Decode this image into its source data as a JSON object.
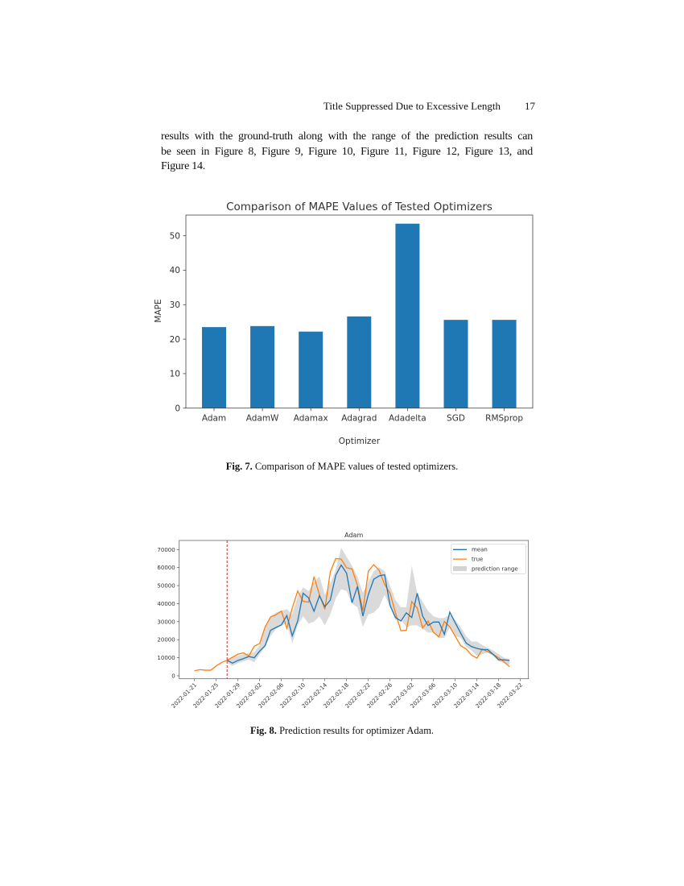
{
  "header": {
    "running_title": "Title Suppressed Due to Excessive Length",
    "page_number": "17"
  },
  "body": {
    "lines": [
      "results with the ground-truth along with the range of the prediction results can",
      "be seen in Figure 8, Figure 9, Figure 10, Figure 11, Figure 12, Figure 13, and",
      "Figure 14."
    ]
  },
  "figures": [
    {
      "label": "Fig. 7.",
      "caption": "Comparison of MAPE values of tested optimizers."
    },
    {
      "label": "Fig. 8.",
      "caption": "Prediction results for optimizer Adam."
    }
  ],
  "chart_data": [
    {
      "type": "bar",
      "title": "Comparison of MAPE Values of Tested Optimizers",
      "xlabel": "Optimizer",
      "ylabel": "MAPE",
      "categories": [
        "Adam",
        "AdamW",
        "Adamax",
        "Adagrad",
        "Adadelta",
        "SGD",
        "RMSprop"
      ],
      "values": [
        23.5,
        23.8,
        22.2,
        26.6,
        53.5,
        25.6,
        25.6
      ],
      "ylim": [
        0,
        56
      ],
      "yticks": [
        0,
        10,
        20,
        30,
        40,
        50
      ],
      "color": "#1f77b4",
      "grid": false
    },
    {
      "type": "line",
      "title": "Adam",
      "xlabel": "",
      "ylabel": "",
      "ylim": [
        -1500,
        75000
      ],
      "yticks": [
        0,
        10000,
        20000,
        30000,
        40000,
        50000,
        60000,
        70000
      ],
      "xticks": [
        "2022-01-21",
        "2022-01-25",
        "2022-01-29",
        "2022-02-02",
        "2022-02-06",
        "2022-02-10",
        "2022-02-14",
        "2022-02-18",
        "2022-02-22",
        "2022-02-26",
        "2022-03-02",
        "2022-03-06",
        "2022-03-10",
        "2022-03-14",
        "2022-03-18",
        "2022-03-22"
      ],
      "legend_position": "top-right",
      "grid": false,
      "forecast_start": "2022-01-27",
      "forecast_line_color": "#d62728",
      "x": [
        "2022-01-21",
        "2022-01-22",
        "2022-01-23",
        "2022-01-24",
        "2022-01-25",
        "2022-01-26",
        "2022-01-27",
        "2022-01-28",
        "2022-01-29",
        "2022-01-30",
        "2022-01-31",
        "2022-02-01",
        "2022-02-02",
        "2022-02-03",
        "2022-02-04",
        "2022-02-05",
        "2022-02-06",
        "2022-02-07",
        "2022-02-08",
        "2022-02-09",
        "2022-02-10",
        "2022-02-11",
        "2022-02-12",
        "2022-02-13",
        "2022-02-14",
        "2022-02-15",
        "2022-02-16",
        "2022-02-17",
        "2022-02-18",
        "2022-02-19",
        "2022-02-20",
        "2022-02-21",
        "2022-02-22",
        "2022-02-23",
        "2022-02-24",
        "2022-02-25",
        "2022-02-26",
        "2022-02-27",
        "2022-02-28",
        "2022-03-01",
        "2022-03-02",
        "2022-03-03",
        "2022-03-04",
        "2022-03-05",
        "2022-03-06",
        "2022-03-07",
        "2022-03-08",
        "2022-03-09",
        "2022-03-10",
        "2022-03-11",
        "2022-03-12",
        "2022-03-13",
        "2022-03-14",
        "2022-03-15",
        "2022-03-16",
        "2022-03-17",
        "2022-03-18",
        "2022-03-19",
        "2022-03-20"
      ],
      "series": [
        {
          "name": "mean",
          "color": "#1f77b4",
          "values": [
            null,
            null,
            null,
            null,
            null,
            null,
            8600,
            7000,
            8500,
            9500,
            10700,
            10000,
            13700,
            16700,
            25200,
            26800,
            28200,
            33400,
            22200,
            30400,
            45800,
            43200,
            35800,
            44400,
            38300,
            42000,
            55700,
            61400,
            56900,
            40500,
            49500,
            33100,
            45000,
            53500,
            55400,
            56000,
            39100,
            32300,
            30400,
            34900,
            32300,
            45800,
            33100,
            27900,
            29800,
            29800,
            23000,
            35300,
            29400,
            23700,
            18200,
            16200,
            15200,
            14500,
            14500,
            11800,
            8900,
            8800,
            8500
          ]
        },
        {
          "name": "true",
          "color": "#ff7f0e",
          "values": [
            2800,
            3400,
            3100,
            3100,
            5500,
            7400,
            8600,
            10300,
            12000,
            12700,
            11000,
            16400,
            17900,
            27100,
            32600,
            33800,
            35900,
            26400,
            37600,
            47000,
            41300,
            40800,
            55000,
            45000,
            36900,
            57600,
            65000,
            64700,
            59900,
            59200,
            50200,
            36100,
            58000,
            61600,
            58400,
            50700,
            45800,
            34900,
            25000,
            25200,
            41100,
            37600,
            26500,
            30400,
            24100,
            21600,
            30100,
            27100,
            21900,
            16700,
            14900,
            11500,
            9800,
            14800,
            13300,
            11800,
            10000,
            7700,
            5000
          ]
        }
      ],
      "prediction_range": {
        "name": "prediction range",
        "color": "#d3d3d3",
        "lower": [
          null,
          null,
          null,
          null,
          null,
          null,
          7500,
          5500,
          7000,
          8000,
          9000,
          7500,
          12000,
          16000,
          22000,
          26000,
          28000,
          29000,
          18000,
          28000,
          33000,
          29000,
          30000,
          33000,
          28000,
          34000,
          43000,
          48000,
          47000,
          40000,
          38000,
          27000,
          34000,
          35000,
          38000,
          45000,
          38000,
          31000,
          31000,
          27000,
          28000,
          28000,
          26000,
          24000,
          24000,
          21000,
          21000,
          27000,
          22000,
          21000,
          16000,
          14000,
          11000,
          12000,
          13000,
          11000,
          8000,
          7000,
          6000
        ],
        "upper": [
          null,
          null,
          null,
          null,
          null,
          null,
          9000,
          10500,
          11000,
          12000,
          12500,
          13000,
          17000,
          27000,
          33000,
          35000,
          36000,
          37000,
          34000,
          44000,
          49000,
          47000,
          52000,
          55000,
          45000,
          51000,
          59000,
          71000,
          66000,
          61000,
          55000,
          46000,
          52000,
          58000,
          60000,
          58000,
          50000,
          42000,
          38000,
          38000,
          61000,
          46000,
          41000,
          36000,
          33000,
          32000,
          32000,
          34000,
          31000,
          27000,
          22000,
          19000,
          19000,
          17000,
          15500,
          14000,
          12000,
          10000,
          9500
        ]
      }
    }
  ]
}
